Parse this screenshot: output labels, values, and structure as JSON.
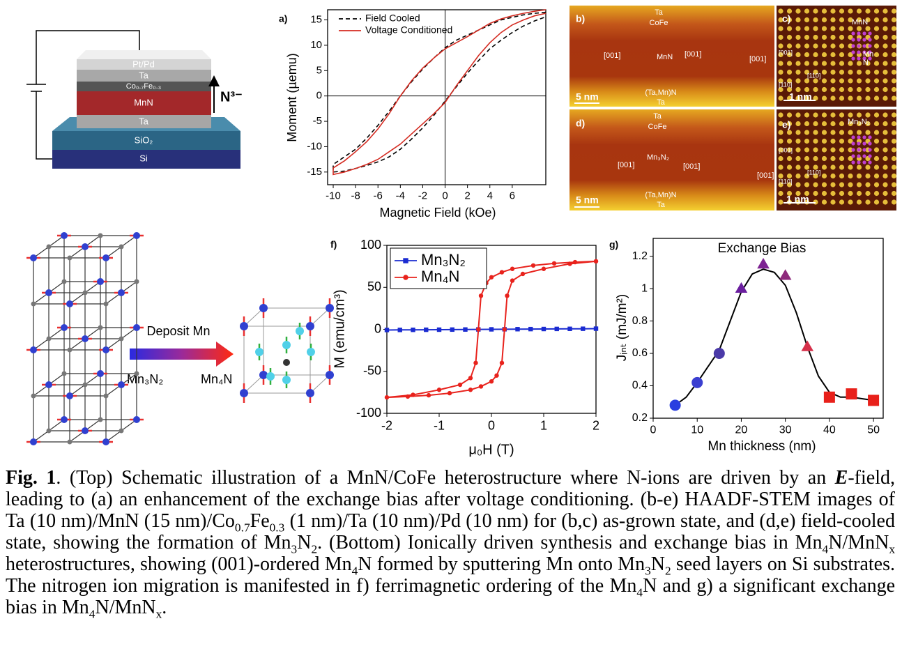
{
  "schematic": {
    "layers": [
      "Pt/Pd",
      "Ta",
      "Co₀.₇Fe₀.₃",
      "MnN",
      "Ta",
      "SiO₂",
      "Si"
    ],
    "ion": "N³⁻"
  },
  "stem": {
    "b": {
      "label": "b)",
      "top": [
        "Ta",
        "CoFe"
      ],
      "directions": [
        "[001]",
        "[001]",
        "[001]"
      ],
      "layer": "MnN",
      "scale": "5 nm",
      "bottom": [
        "(Ta,Mn)N",
        "Ta"
      ]
    },
    "c": {
      "label": "c)",
      "phase": "MnN",
      "atoms": [
        "Mn",
        "N"
      ],
      "axes": [
        "[001]",
        "[110]",
        "[110]"
      ],
      "scale": "1 nm"
    },
    "d": {
      "label": "d)",
      "top": [
        "Ta",
        "CoFe"
      ],
      "directions": [
        "[001]",
        "[001]",
        "[001]"
      ],
      "layer": "Mn₃N₂",
      "scale": "5 nm",
      "bottom": [
        "(Ta,Mn)N",
        "Ta"
      ]
    },
    "e": {
      "label": "e)",
      "phase": "Mn₃N₂",
      "axes": [
        "[001]",
        "[110]",
        "[110]"
      ],
      "scale": "1 nm"
    }
  },
  "lattice": {
    "process": "Deposit Mn",
    "from": "Mn₃N₂",
    "to": "Mn₄N"
  },
  "chart_data": [
    {
      "type": "line",
      "label": "a)",
      "x_label": "Magnetic Field (kOe)",
      "y_label": "Moment (µemu)",
      "xlim": [
        -10.5,
        9
      ],
      "xticks": [
        -10,
        -8,
        -6,
        -4,
        -2,
        0,
        2,
        4,
        6
      ],
      "ylim": [
        -17.5,
        17
      ],
      "yticks": [
        -15,
        -10,
        -5,
        0,
        5,
        10,
        15
      ],
      "zero_lines": true,
      "legend": "upper left",
      "series": [
        {
          "name": "Field Cooled",
          "color": "#000000",
          "dash": "dashed",
          "x": [
            9,
            8,
            7,
            6,
            5,
            4,
            3,
            2,
            1,
            0,
            -1,
            -2,
            -3,
            -4,
            -5,
            -6,
            -7,
            -8,
            -9,
            -10,
            -10,
            -9,
            -8,
            -7,
            -6,
            -5,
            -4,
            -3,
            -2,
            -1,
            0,
            1,
            2,
            3,
            4,
            5,
            6,
            7,
            8,
            9
          ],
          "values": [
            16.5,
            16.3,
            16,
            15.5,
            15,
            14,
            13,
            12,
            11,
            9.5,
            7.5,
            5.3,
            2.8,
            0,
            -3,
            -5.8,
            -8.3,
            -10.5,
            -12,
            -13.5,
            -15,
            -14.8,
            -14.3,
            -13.7,
            -13,
            -12,
            -10.5,
            -8.5,
            -6.3,
            -3.8,
            -1,
            1.8,
            4.5,
            7,
            9.3,
            11,
            12.5,
            13.8,
            14.8,
            15.6
          ]
        },
        {
          "name": "Voltage Conditioned",
          "color": "#d42a20",
          "x": [
            9,
            8,
            7,
            6,
            5,
            4,
            3,
            2,
            1,
            0,
            -1,
            -2,
            -3,
            -4,
            -5,
            -6,
            -7,
            -8,
            -9,
            -10,
            -10,
            -9,
            -8,
            -7,
            -6,
            -5,
            -4,
            -3,
            -2,
            -1,
            0,
            1,
            2,
            3,
            4,
            5,
            6,
            7,
            8,
            9
          ],
          "values": [
            17,
            16.7,
            16.3,
            15.8,
            15.2,
            14.3,
            13,
            11.7,
            10.5,
            9.3,
            7.5,
            5.5,
            3,
            0,
            -3.5,
            -6.5,
            -9,
            -11,
            -12.8,
            -14.2,
            -15.5,
            -15,
            -14.3,
            -13.5,
            -12.5,
            -11,
            -9.5,
            -7.5,
            -5.5,
            -3.5,
            -1.3,
            2,
            5,
            8,
            10.5,
            12.5,
            14,
            15,
            15.8,
            16.3
          ]
        }
      ]
    },
    {
      "type": "line",
      "label": "f)",
      "x_label": "μ₀H (T)",
      "y_label": "M (emu/cm³)",
      "xlim": [
        -2,
        2
      ],
      "xticks": [
        -2,
        -1,
        0,
        1,
        2
      ],
      "ylim": [
        -100,
        100
      ],
      "yticks": [
        -100,
        -50,
        0,
        50,
        100
      ],
      "legend": "upper left",
      "series": [
        {
          "name": "Mn₃N₂",
          "color": "#1a2bd1",
          "marker": "square",
          "x": [
            -2,
            -1.75,
            -1.5,
            -1.25,
            -1,
            -0.75,
            -0.5,
            -0.25,
            0,
            0.25,
            0.5,
            0.75,
            1,
            1.25,
            1.5,
            1.75,
            2
          ],
          "values": [
            -0.8,
            -0.7,
            -0.6,
            -0.5,
            -0.4,
            -0.3,
            -0.2,
            -0.1,
            0,
            0.1,
            0.2,
            0.3,
            0.4,
            0.5,
            0.6,
            0.7,
            0.8
          ]
        },
        {
          "name": "Mn₄N",
          "color": "#e8221c",
          "marker": "circle",
          "x": [
            2,
            1.6,
            1.2,
            0.8,
            0.4,
            0.2,
            0,
            -0.1,
            -0.2,
            -0.25,
            -0.3,
            -0.4,
            -0.6,
            -1,
            -1.5,
            -2,
            -1.6,
            -1.2,
            -0.8,
            -0.4,
            -0.2,
            0,
            0.1,
            0.2,
            0.25,
            0.3,
            0.4,
            0.6,
            1,
            1.5,
            2
          ],
          "values": [
            81,
            80,
            78.5,
            76,
            72,
            68,
            62,
            55,
            40,
            0,
            -40,
            -58,
            -66,
            -72,
            -78,
            -81,
            -80,
            -78.5,
            -76,
            -72,
            -68,
            -62,
            -55,
            -40,
            0,
            40,
            58,
            66,
            72,
            78,
            81
          ]
        }
      ]
    },
    {
      "type": "scatter",
      "label": "g)",
      "title": "Exchange Bias",
      "x_label": "Mn thickness (nm)",
      "y_label": "Jᵢₙₜ (mJ/m²)",
      "xlim": [
        0,
        52.2
      ],
      "xticks": [
        0,
        10,
        20,
        30,
        40,
        50
      ],
      "ylim": [
        0.2,
        1.31
      ],
      "yticks": [
        0.2,
        0.4,
        0.6,
        0.8,
        1.0,
        1.2
      ],
      "series": [
        {
          "line": true,
          "color": "#000000",
          "x": [
            5,
            7.5,
            10,
            12.5,
            15,
            17.5,
            20,
            22.5,
            25,
            27.5,
            30,
            32.5,
            35,
            37.5,
            40,
            42.5,
            45,
            47.5,
            50
          ],
          "values": [
            0.28,
            0.33,
            0.42,
            0.52,
            0.62,
            0.8,
            0.98,
            1.09,
            1.12,
            1.1,
            1.02,
            0.85,
            0.64,
            0.46,
            0.36,
            0.33,
            0.33,
            0.32,
            0.31
          ]
        },
        {
          "marker": "circle",
          "x": [
            5,
            10,
            15
          ],
          "values": [
            0.28,
            0.42,
            0.6
          ],
          "colors": [
            "#2a3ee0",
            "#3b3fd0",
            "#4b3aa8"
          ]
        },
        {
          "marker": "triangle",
          "x": [
            20,
            25,
            30,
            35
          ],
          "values": [
            1.0,
            1.15,
            1.08,
            0.64
          ],
          "colors": [
            "#6b1f9f",
            "#7d2392",
            "#8e2a7c",
            "#d6304a"
          ]
        },
        {
          "marker": "square",
          "x": [
            40,
            45,
            50
          ],
          "values": [
            0.33,
            0.35,
            0.31
          ],
          "color": "#e8201a"
        }
      ]
    }
  ],
  "caption": [
    "Fig. 1",
    ". (Top) Schematic illustration of a MnN/CoFe heterostructure where N-ions are driven by an ",
    "E",
    "-field, leading to (a) an enhancement of the exchange bias after voltage conditioning. (b-e) HAADF-STEM images of Ta (10 nm)/MnN (15 nm)/Co",
    "0.7",
    "Fe",
    "0.3",
    " (1 nm)/Ta (10 nm)/Pd (10 nm) for (b,c) as-grown state, and (d,e) field-cooled state, showing the formation of Mn",
    "3",
    "N",
    "2",
    ". (Bottom) Ionically driven synthesis and exchange bias in Mn",
    "4",
    "N/MnN",
    "x",
    " heterostructures, showing (001)-ordered Mn",
    "4",
    "N formed by sputtering Mn onto Mn",
    "3",
    "N",
    "2",
    " seed layers on Si substrates. The nitrogen ion migration is manifested in f) ferrimagnetic ordering of the Mn",
    "4",
    "N and g) a significant exchange bias in Mn",
    "4",
    "N/MnN",
    "x",
    "."
  ]
}
